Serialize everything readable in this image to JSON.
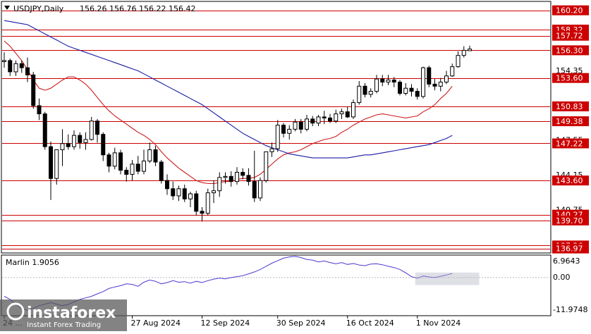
{
  "header": {
    "symbol": "USDJPY,Daily",
    "ohlc": "156.26 156.76 156.22 156.42"
  },
  "indicator": {
    "name": "Marlin 1.9056",
    "axis_labels": [
      "6.9643",
      "0.00",
      "-11.9748"
    ]
  },
  "watermark": {
    "brand": "instaforex",
    "tagline": "Instant Forex Trading"
  },
  "colors": {
    "background": "#ffffff",
    "candle": "#000000",
    "level_line": "#cc0000",
    "ma_fast": "#cc1a1a",
    "ma_slow": "#1a1aa6",
    "oscillator": "#4a3ad0",
    "label_bg": "#cc0000",
    "label_text": "#ffffff"
  },
  "chart_data": {
    "type": "candlestick",
    "title": "USDJPY,Daily",
    "ylim": [
      136.6,
      161.0
    ],
    "y_ticks": [
      {
        "label": "160.20",
        "value": 160.2,
        "highlight": true
      },
      {
        "label": "158.32",
        "value": 158.32,
        "highlight": true
      },
      {
        "label": "157.72",
        "value": 157.72,
        "highlight": true
      },
      {
        "label": "156.30",
        "value": 156.3,
        "highlight": true
      },
      {
        "label": "154.35",
        "value": 154.35,
        "highlight": false
      },
      {
        "label": "153.60",
        "value": 153.6,
        "highlight": true
      },
      {
        "label": "150.83",
        "value": 150.83,
        "highlight": true
      },
      {
        "label": "149.38",
        "value": 149.38,
        "highlight": true
      },
      {
        "label": "147.55",
        "value": 147.55,
        "highlight": false
      },
      {
        "label": "147.22",
        "value": 147.22,
        "highlight": true
      },
      {
        "label": "144.15",
        "value": 144.15,
        "highlight": false
      },
      {
        "label": "143.60",
        "value": 143.6,
        "highlight": true
      },
      {
        "label": "140.75",
        "value": 140.75,
        "highlight": false
      },
      {
        "label": "140.27",
        "value": 140.27,
        "highlight": true
      },
      {
        "label": "139.70",
        "value": 139.7,
        "highlight": true
      },
      {
        "label": "137.26",
        "value": 137.26,
        "highlight": true
      },
      {
        "label": "136.97",
        "value": 136.97,
        "highlight": true
      }
    ],
    "levels": [
      160.2,
      158.32,
      157.72,
      156.3,
      153.6,
      150.83,
      149.38,
      147.22,
      143.6,
      140.27,
      139.7,
      137.26,
      136.97
    ],
    "x_labels": [
      {
        "label": "24 ...",
        "index": 0
      },
      {
        "label": "27 Aug 2024",
        "index": 22
      },
      {
        "label": "12 Sep 2024",
        "index": 34
      },
      {
        "label": "30 Sep 2024",
        "index": 47
      },
      {
        "label": "16 Oct 2024",
        "index": 59
      },
      {
        "label": "1 Nov 2024",
        "index": 71
      }
    ],
    "candles": [
      [
        155.2,
        156.1,
        154.6,
        155.3
      ],
      [
        155.3,
        155.5,
        153.8,
        154.2
      ],
      [
        154.2,
        155.3,
        153.8,
        155.0
      ],
      [
        155.0,
        155.3,
        154.1,
        154.6
      ],
      [
        154.6,
        155.6,
        153.2,
        153.9
      ],
      [
        153.9,
        154.2,
        150.6,
        150.9
      ],
      [
        150.9,
        151.6,
        149.5,
        150.1
      ],
      [
        150.1,
        150.3,
        146.6,
        146.9
      ],
      [
        146.9,
        147.4,
        141.7,
        143.8
      ],
      [
        143.8,
        146.6,
        143.2,
        146.6
      ],
      [
        146.6,
        148.6,
        145.0,
        147.2
      ],
      [
        147.2,
        148.1,
        146.6,
        146.9
      ],
      [
        146.9,
        148.5,
        146.6,
        148.0
      ],
      [
        148.0,
        148.3,
        146.7,
        147.3
      ],
      [
        147.3,
        148.3,
        146.6,
        147.6
      ],
      [
        147.6,
        149.8,
        147.5,
        149.4
      ],
      [
        149.4,
        149.6,
        147.3,
        148.1
      ],
      [
        148.1,
        148.3,
        145.5,
        146.1
      ],
      [
        146.1,
        146.3,
        144.4,
        145.0
      ],
      [
        145.0,
        146.8,
        144.7,
        146.3
      ],
      [
        146.3,
        146.6,
        144.2,
        144.6
      ],
      [
        144.6,
        144.9,
        143.5,
        144.2
      ],
      [
        144.2,
        145.6,
        143.6,
        145.2
      ],
      [
        145.2,
        146.0,
        144.2,
        144.5
      ],
      [
        144.5,
        146.6,
        144.2,
        145.5
      ],
      [
        145.5,
        147.3,
        145.3,
        146.6
      ],
      [
        146.6,
        147.0,
        145.0,
        145.4
      ],
      [
        145.4,
        145.6,
        143.3,
        143.6
      ],
      [
        143.6,
        144.2,
        142.2,
        142.8
      ],
      [
        142.8,
        143.5,
        141.7,
        142.1
      ],
      [
        142.1,
        143.1,
        141.6,
        142.8
      ],
      [
        142.8,
        143.2,
        141.5,
        141.8
      ],
      [
        141.8,
        142.5,
        141.0,
        142.3
      ],
      [
        142.3,
        142.6,
        140.2,
        140.6
      ],
      [
        140.6,
        141.0,
        139.6,
        140.4
      ],
      [
        140.4,
        142.8,
        140.2,
        142.4
      ],
      [
        142.4,
        143.6,
        141.4,
        142.6
      ],
      [
        142.6,
        144.4,
        142.0,
        143.9
      ],
      [
        143.9,
        144.4,
        143.3,
        144.0
      ],
      [
        144.0,
        144.5,
        143.0,
        143.5
      ],
      [
        143.5,
        144.9,
        143.2,
        144.4
      ],
      [
        144.4,
        144.8,
        143.7,
        144.1
      ],
      [
        144.1,
        144.8,
        143.1,
        143.5
      ],
      [
        143.5,
        146.5,
        141.5,
        141.9
      ],
      [
        141.9,
        143.9,
        141.6,
        143.6
      ],
      [
        143.6,
        146.4,
        143.4,
        146.4
      ],
      [
        146.4,
        147.3,
        145.9,
        146.7
      ],
      [
        146.7,
        149.5,
        146.4,
        149.0
      ],
      [
        149.0,
        149.2,
        147.8,
        148.2
      ],
      [
        148.2,
        149.0,
        147.6,
        148.6
      ],
      [
        148.6,
        149.6,
        148.4,
        149.3
      ],
      [
        149.3,
        149.6,
        148.2,
        148.6
      ],
      [
        148.6,
        150.0,
        148.4,
        149.6
      ],
      [
        149.6,
        149.9,
        148.9,
        149.2
      ],
      [
        149.2,
        150.0,
        148.9,
        149.8
      ],
      [
        149.8,
        150.4,
        149.1,
        149.7
      ],
      [
        149.7,
        150.1,
        149.2,
        149.4
      ],
      [
        149.4,
        150.5,
        149.2,
        150.1
      ],
      [
        150.1,
        150.6,
        149.6,
        150.3
      ],
      [
        150.3,
        150.8,
        149.7,
        149.8
      ],
      [
        149.8,
        151.5,
        149.6,
        151.2
      ],
      [
        151.2,
        153.3,
        151.0,
        152.8
      ],
      [
        152.8,
        153.1,
        151.7,
        152.0
      ],
      [
        152.0,
        152.6,
        151.7,
        152.3
      ],
      [
        152.3,
        153.9,
        152.1,
        153.5
      ],
      [
        153.5,
        153.9,
        152.8,
        153.2
      ],
      [
        153.2,
        153.9,
        152.9,
        153.4
      ],
      [
        153.4,
        153.7,
        152.7,
        153.2
      ],
      [
        153.2,
        153.4,
        151.9,
        152.1
      ],
      [
        152.1,
        153.1,
        151.9,
        152.6
      ],
      [
        152.6,
        153.0,
        151.8,
        152.3
      ],
      [
        152.3,
        152.6,
        151.5,
        151.8
      ],
      [
        151.8,
        154.7,
        151.6,
        154.6
      ],
      [
        154.6,
        154.8,
        152.7,
        153.0
      ],
      [
        153.0,
        153.5,
        152.4,
        152.8
      ],
      [
        152.8,
        153.6,
        152.3,
        153.2
      ],
      [
        153.2,
        154.3,
        153.0,
        153.8
      ],
      [
        153.8,
        155.0,
        153.7,
        154.7
      ],
      [
        154.7,
        156.2,
        154.6,
        155.8
      ],
      [
        155.8,
        156.7,
        155.6,
        156.3
      ],
      [
        156.26,
        156.76,
        156.22,
        156.42
      ]
    ],
    "ma_fast": [
      157.2,
      156.7,
      156.0,
      155.3,
      154.4,
      153.4,
      152.6,
      152.4,
      152.6,
      153.0,
      153.4,
      153.7,
      153.7,
      153.4,
      153.0,
      152.4,
      151.7,
      151.0,
      150.4,
      149.9,
      149.5,
      149.1,
      148.7,
      148.3,
      148.0,
      147.6,
      147.1,
      146.4,
      145.8,
      145.3,
      144.8,
      144.4,
      144.0,
      143.6,
      143.4,
      143.3,
      143.3,
      143.4,
      143.5,
      143.5,
      143.7,
      143.8,
      143.8,
      143.9,
      144.2,
      144.7,
      145.2,
      145.7,
      146.1,
      146.3,
      146.4,
      146.6,
      146.9,
      147.2,
      147.4,
      147.6,
      147.7,
      147.9,
      148.3,
      148.6,
      149.0,
      149.3,
      149.6,
      149.8,
      150.0,
      150.1,
      150.0,
      149.9,
      149.8,
      149.7,
      149.8,
      149.9,
      150.3,
      150.6,
      151.0,
      151.6,
      152.1,
      152.8
    ],
    "ma_slow": [
      159.2,
      159.1,
      159.0,
      158.9,
      158.8,
      158.5,
      158.2,
      157.9,
      157.6,
      157.3,
      157.0,
      156.7,
      156.5,
      156.3,
      156.1,
      155.9,
      155.7,
      155.5,
      155.3,
      155.1,
      154.9,
      154.7,
      154.5,
      154.3,
      154.0,
      153.7,
      153.4,
      153.1,
      152.8,
      152.5,
      152.2,
      151.9,
      151.6,
      151.3,
      151.0,
      150.6,
      150.2,
      149.8,
      149.4,
      149.0,
      148.6,
      148.2,
      147.9,
      147.6,
      147.3,
      147.0,
      146.8,
      146.6,
      146.4,
      146.2,
      146.1,
      146.0,
      145.9,
      145.8,
      145.8,
      145.8,
      145.8,
      145.8,
      145.8,
      145.8,
      145.9,
      146.0,
      146.1,
      146.1,
      146.2,
      146.3,
      146.4,
      146.5,
      146.6,
      146.7,
      146.8,
      146.9,
      147.0,
      147.1,
      147.3,
      147.5,
      147.7,
      148.0
    ],
    "oscillator": {
      "name": "Marlin 1.9056",
      "ylim": [
        -11.9748,
        6.9643
      ],
      "values": [
        -6.0,
        -7.0,
        -8.5,
        -10.0,
        -10.5,
        -9.8,
        -9.0,
        -8.5,
        -8.0,
        -8.5,
        -9.0,
        -8.6,
        -7.8,
        -7.0,
        -6.5,
        -6.0,
        -5.2,
        -4.5,
        -3.5,
        -3.0,
        -2.6,
        -2.0,
        -2.2,
        -2.8,
        -1.5,
        -0.8,
        -1.2,
        -2.0,
        -1.6,
        -1.0,
        -1.5,
        -1.3,
        -1.8,
        -1.2,
        -1.6,
        -1.0,
        -0.5,
        -0.2,
        -0.4,
        0.0,
        0.3,
        0.6,
        1.2,
        1.8,
        2.6,
        3.6,
        4.6,
        5.4,
        6.2,
        6.6,
        6.8,
        6.4,
        5.8,
        5.6,
        5.0,
        5.3,
        4.8,
        4.4,
        4.8,
        4.2,
        4.5,
        4.0,
        3.8,
        4.3,
        4.4,
        4.1,
        3.6,
        3.2,
        2.6,
        1.5,
        0.3,
        -0.2,
        0.5,
        0.2,
        0.0,
        0.4,
        0.8,
        1.3
      ]
    }
  }
}
